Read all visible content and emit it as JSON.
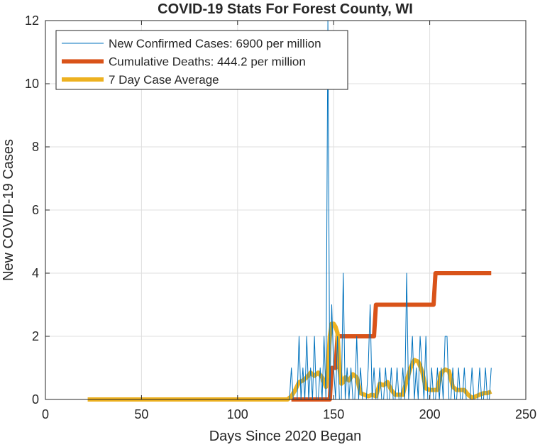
{
  "chart_data": {
    "type": "line",
    "title": "COVID-19 Stats For Forest County, WI",
    "xlabel": "Days Since 2020 Began",
    "ylabel": "New COVID-19 Cases",
    "xlim": [
      0,
      250
    ],
    "ylim": [
      0,
      12
    ],
    "xticks": [
      0,
      50,
      100,
      150,
      200,
      250
    ],
    "yticks": [
      0,
      2,
      4,
      6,
      8,
      10,
      12
    ],
    "grid": true,
    "legend_position": "top-left",
    "series": [
      {
        "name": "New Confirmed Cases: 6900 per million",
        "color": "#0072BD",
        "line_style": "thin",
        "x": [
          22,
          127,
          128,
          129,
          130,
          131,
          132,
          133,
          134,
          135,
          136,
          137,
          138,
          139,
          140,
          141,
          142,
          143,
          144,
          145,
          146,
          147,
          148,
          149,
          150,
          151,
          152,
          153,
          154,
          155,
          156,
          157,
          158,
          159,
          160,
          161,
          162,
          163,
          164,
          165,
          166,
          167,
          168,
          169,
          170,
          171,
          172,
          173,
          174,
          175,
          176,
          177,
          178,
          179,
          180,
          181,
          182,
          183,
          184,
          185,
          186,
          187,
          188,
          189,
          190,
          191,
          192,
          193,
          194,
          195,
          196,
          197,
          198,
          199,
          200,
          201,
          202,
          203,
          204,
          205,
          206,
          207,
          208,
          209,
          210,
          211,
          212,
          213,
          214,
          215,
          216,
          217,
          218,
          219,
          220,
          221,
          222,
          223,
          224,
          225,
          226,
          227,
          228,
          229,
          230,
          231,
          232
        ],
        "values": [
          0,
          0,
          1,
          0,
          0,
          0,
          2,
          0,
          1,
          0,
          2,
          0,
          1,
          0,
          2,
          0,
          0,
          1,
          0,
          2,
          0,
          12,
          0,
          3,
          1,
          0,
          2,
          0,
          0,
          4,
          0,
          1,
          0,
          1,
          0,
          0,
          2,
          0,
          1,
          0,
          0,
          0,
          1,
          3,
          0,
          1,
          0,
          0,
          1,
          0,
          0,
          1,
          0,
          0,
          1,
          0,
          0,
          1,
          0,
          0,
          1,
          0,
          4,
          0,
          1,
          2,
          0,
          1,
          0,
          2,
          1,
          0,
          2,
          0,
          0,
          1,
          0,
          0,
          1,
          0,
          1,
          0,
          2,
          2,
          0,
          0,
          1,
          0,
          0,
          1,
          0,
          0,
          1,
          0,
          0,
          0,
          1,
          0,
          0,
          0,
          1,
          0,
          0,
          1,
          0,
          0,
          1
        ]
      },
      {
        "name": "Cumulative Deaths: 444.2 per million",
        "color": "#D95319",
        "line_style": "thick",
        "x": [
          128,
          148,
          149,
          151,
          152,
          171,
          172,
          202,
          203,
          232
        ],
        "values": [
          0,
          0,
          1,
          1,
          2,
          2,
          3,
          3,
          4,
          4
        ]
      },
      {
        "name": "7 Day Case Average",
        "color": "#EDB120",
        "line_style": "thick",
        "x": [
          22,
          126,
          128,
          130,
          132,
          134,
          136,
          138,
          140,
          142,
          144,
          146,
          147,
          148,
          149,
          150,
          151,
          152,
          153,
          154,
          155,
          156,
          158,
          160,
          162,
          164,
          166,
          168,
          170,
          172,
          174,
          176,
          178,
          180,
          182,
          184,
          186,
          188,
          190,
          192,
          194,
          196,
          198,
          200,
          202,
          204,
          206,
          208,
          210,
          212,
          214,
          216,
          218,
          220,
          222,
          224,
          226,
          228,
          230,
          232
        ],
        "values": [
          0,
          0,
          0.1,
          0.3,
          0.55,
          0.6,
          0.7,
          0.85,
          0.75,
          0.85,
          0.7,
          0.4,
          1.0,
          2.0,
          2.4,
          2.4,
          2.3,
          2.1,
          1.0,
          0.5,
          0.55,
          0.7,
          0.6,
          0.8,
          0.7,
          0.2,
          0.15,
          0.1,
          0.15,
          0.1,
          0.5,
          0.45,
          0.55,
          0.3,
          0.15,
          0.15,
          0.15,
          0.6,
          1.0,
          1.25,
          1.2,
          0.9,
          0.35,
          0.3,
          0.3,
          0.3,
          0.85,
          0.95,
          0.9,
          0.4,
          0.3,
          0.3,
          0.3,
          0.15,
          0.05,
          0.1,
          0.15,
          0.2,
          0.2,
          0.25
        ]
      }
    ]
  }
}
